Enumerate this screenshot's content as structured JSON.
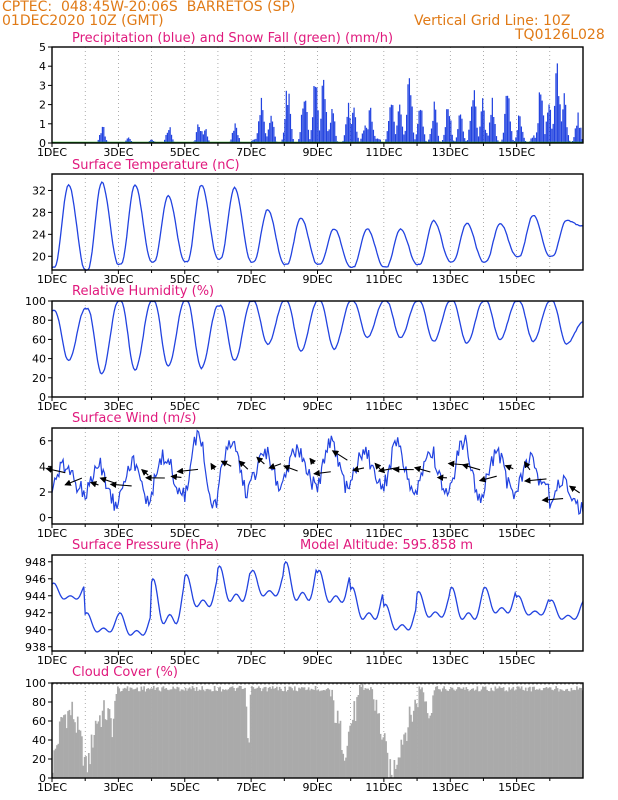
{
  "header": {
    "line1": "CPTEC:  048:45W-20:06S  BARRETOS (SP)",
    "line2": "01DEC2020 10Z (GMT)",
    "grid_note": "Vertical Grid Line: 10Z",
    "code": "TQ0126L028"
  },
  "colors": {
    "header": "#e07a16",
    "title": "#e0197d",
    "line": "#2243e0",
    "snow": "#1a9a1a",
    "cloud": "#aaaaaa"
  },
  "chart_data": [
    {
      "id": "precip",
      "type": "bar",
      "title": "Precipitation (blue) and Snow Fall (green) (mm/h)",
      "x_labels": [
        "1DEC",
        "3DEC",
        "5DEC",
        "7DEC",
        "9DEC",
        "11DEC",
        "13DEC",
        "15DEC"
      ],
      "ylim": [
        0,
        5
      ],
      "yticks": [
        0,
        1,
        2,
        3,
        4,
        5
      ],
      "series": [
        {
          "name": "Precipitation",
          "color": "#2243e0",
          "bursts": [
            [
              1.5,
              1.0
            ],
            [
              3.5,
              1.0
            ],
            [
              4.4,
              1.2
            ],
            [
              4.6,
              0.9
            ],
            [
              5.5,
              1.3
            ],
            [
              6.3,
              2.6
            ],
            [
              6.6,
              1.7
            ],
            [
              7.1,
              3.3
            ],
            [
              7.6,
              3.2
            ],
            [
              7.9,
              4.5
            ],
            [
              8.15,
              4.0
            ],
            [
              8.4,
              2.2
            ],
            [
              8.9,
              2.4
            ],
            [
              9.1,
              1.9
            ],
            [
              9.4,
              1.3
            ],
            [
              9.6,
              2.2
            ],
            [
              10.2,
              3.1
            ],
            [
              10.45,
              2.1
            ],
            [
              10.75,
              4.0
            ],
            [
              11.1,
              2.3
            ],
            [
              11.5,
              2.2
            ],
            [
              11.9,
              2.3
            ],
            [
              12.3,
              1.8
            ],
            [
              12.65,
              3.7
            ],
            [
              12.95,
              2.4
            ],
            [
              13.25,
              2.6
            ],
            [
              13.7,
              3.1
            ],
            [
              14.1,
              1.8
            ],
            [
              14.7,
              3.2
            ],
            [
              14.95,
              2.3
            ],
            [
              15.2,
              4.8
            ],
            [
              15.4,
              2.6
            ],
            [
              15.85,
              1.6
            ],
            [
              2.3,
              0.3
            ],
            [
              3.0,
              0.2
            ],
            [
              6.1,
              0.3
            ],
            [
              9.8,
              0.4
            ],
            [
              11.4,
              0.4
            ],
            [
              14.5,
              0.5
            ]
          ]
        },
        {
          "name": "Snow Fall",
          "color": "#1a9a1a",
          "values": "zero"
        }
      ]
    },
    {
      "id": "temp",
      "type": "line",
      "title": "Surface Temperature (nC)",
      "x_labels": [
        "1DEC",
        "3DEC",
        "5DEC",
        "7DEC",
        "9DEC",
        "11DEC",
        "13DEC",
        "15DEC"
      ],
      "ylim": [
        17.5,
        35
      ],
      "yticks": [
        20,
        24,
        28,
        32
      ],
      "daily_min": [
        18,
        17.5,
        18.5,
        19,
        19,
        19.5,
        19,
        18.5,
        18.5,
        18,
        18,
        18.5,
        19,
        19,
        20,
        20
      ],
      "daily_max": [
        33,
        33.5,
        33,
        31,
        33,
        32.5,
        28.5,
        27,
        25,
        25,
        25,
        26.5,
        26,
        26,
        27.5,
        26.5
      ],
      "end_value": 25.5
    },
    {
      "id": "rh",
      "type": "line",
      "title": "Relative Humidity (%)",
      "x_labels": [
        "1DEC",
        "3DEC",
        "5DEC",
        "7DEC",
        "9DEC",
        "11DEC",
        "13DEC",
        "15DEC"
      ],
      "ylim": [
        0,
        100
      ],
      "yticks": [
        0,
        20,
        40,
        60,
        80,
        100
      ],
      "daily_min": [
        38,
        24,
        28,
        32,
        30,
        38,
        55,
        48,
        50,
        62,
        62,
        58,
        56,
        60,
        58,
        55
      ],
      "daily_max": [
        90,
        92,
        100,
        100,
        100,
        95,
        100,
        100,
        100,
        100,
        100,
        100,
        100,
        100,
        100,
        100
      ],
      "end_value": 78
    },
    {
      "id": "wind",
      "type": "line",
      "title": "Surface Wind (m/s)",
      "x_labels": [
        "1DEC",
        "3DEC",
        "5DEC",
        "7DEC",
        "9DEC",
        "11DEC",
        "13DEC",
        "15DEC"
      ],
      "ylim": [
        -0.5,
        7
      ],
      "yticks": [
        0,
        2,
        4,
        6
      ],
      "daily_min": [
        2.2,
        1.2,
        1.5,
        1.8,
        1.0,
        2.0,
        2.3,
        2.5,
        2.2,
        2.5,
        2.0,
        2.0,
        1.8,
        2.0,
        2.0,
        0.6
      ],
      "daily_max": [
        4.0,
        4.2,
        4.3,
        4.8,
        6.3,
        6.0,
        5.2,
        5.5,
        5.8,
        5.2,
        5.6,
        5.2,
        6.0,
        5.0,
        4.5,
        3.2
      ],
      "end_value": 2.5
    },
    {
      "id": "pres",
      "type": "line",
      "title": "Surface Pressure (hPa)",
      "annotation": "Model Altitude: 595.858  m",
      "x_labels": [
        "1DEC",
        "3DEC",
        "5DEC",
        "7DEC",
        "9DEC",
        "11DEC",
        "13DEC",
        "15DEC"
      ],
      "ylim": [
        937.5,
        948.8
      ],
      "yticks": [
        938,
        940,
        942,
        944,
        946,
        948
      ],
      "daily_min": [
        943,
        939,
        938.5,
        939,
        941.5,
        942,
        943,
        942,
        942,
        940,
        939,
        940.5,
        940,
        941,
        941,
        940.5
      ],
      "daily_max": [
        945.5,
        942,
        942,
        946,
        946.5,
        947.5,
        947,
        948,
        947,
        945,
        943,
        944.5,
        945,
        945,
        944,
        943.5
      ],
      "end_value": 943.5
    },
    {
      "id": "cloud",
      "type": "area",
      "title": "Cloud Cover (%)",
      "x_labels": [
        "1DEC",
        "3DEC",
        "5DEC",
        "7DEC",
        "9DEC",
        "11DEC",
        "13DEC",
        "15DEC"
      ],
      "ylim": [
        0,
        100
      ],
      "yticks": [
        0,
        20,
        40,
        60,
        80,
        100
      ],
      "profile": [
        [
          0.0,
          15
        ],
        [
          0.3,
          65
        ],
        [
          0.6,
          70
        ],
        [
          0.9,
          30
        ],
        [
          1.0,
          10
        ],
        [
          1.1,
          20
        ],
        [
          1.3,
          60
        ],
        [
          1.6,
          70
        ],
        [
          1.8,
          55
        ],
        [
          2.0,
          100
        ],
        [
          5.8,
          100
        ],
        [
          5.9,
          40
        ],
        [
          6.0,
          98
        ],
        [
          8.0,
          100
        ],
        [
          8.3,
          95
        ],
        [
          8.5,
          70
        ],
        [
          8.8,
          30
        ],
        [
          9.0,
          60
        ],
        [
          9.3,
          88
        ],
        [
          9.6,
          96
        ],
        [
          9.9,
          50
        ],
        [
          10.2,
          0
        ],
        [
          10.5,
          40
        ],
        [
          10.8,
          65
        ],
        [
          11.1,
          95
        ],
        [
          11.4,
          70
        ],
        [
          11.5,
          100
        ],
        [
          16.0,
          100
        ]
      ]
    }
  ]
}
